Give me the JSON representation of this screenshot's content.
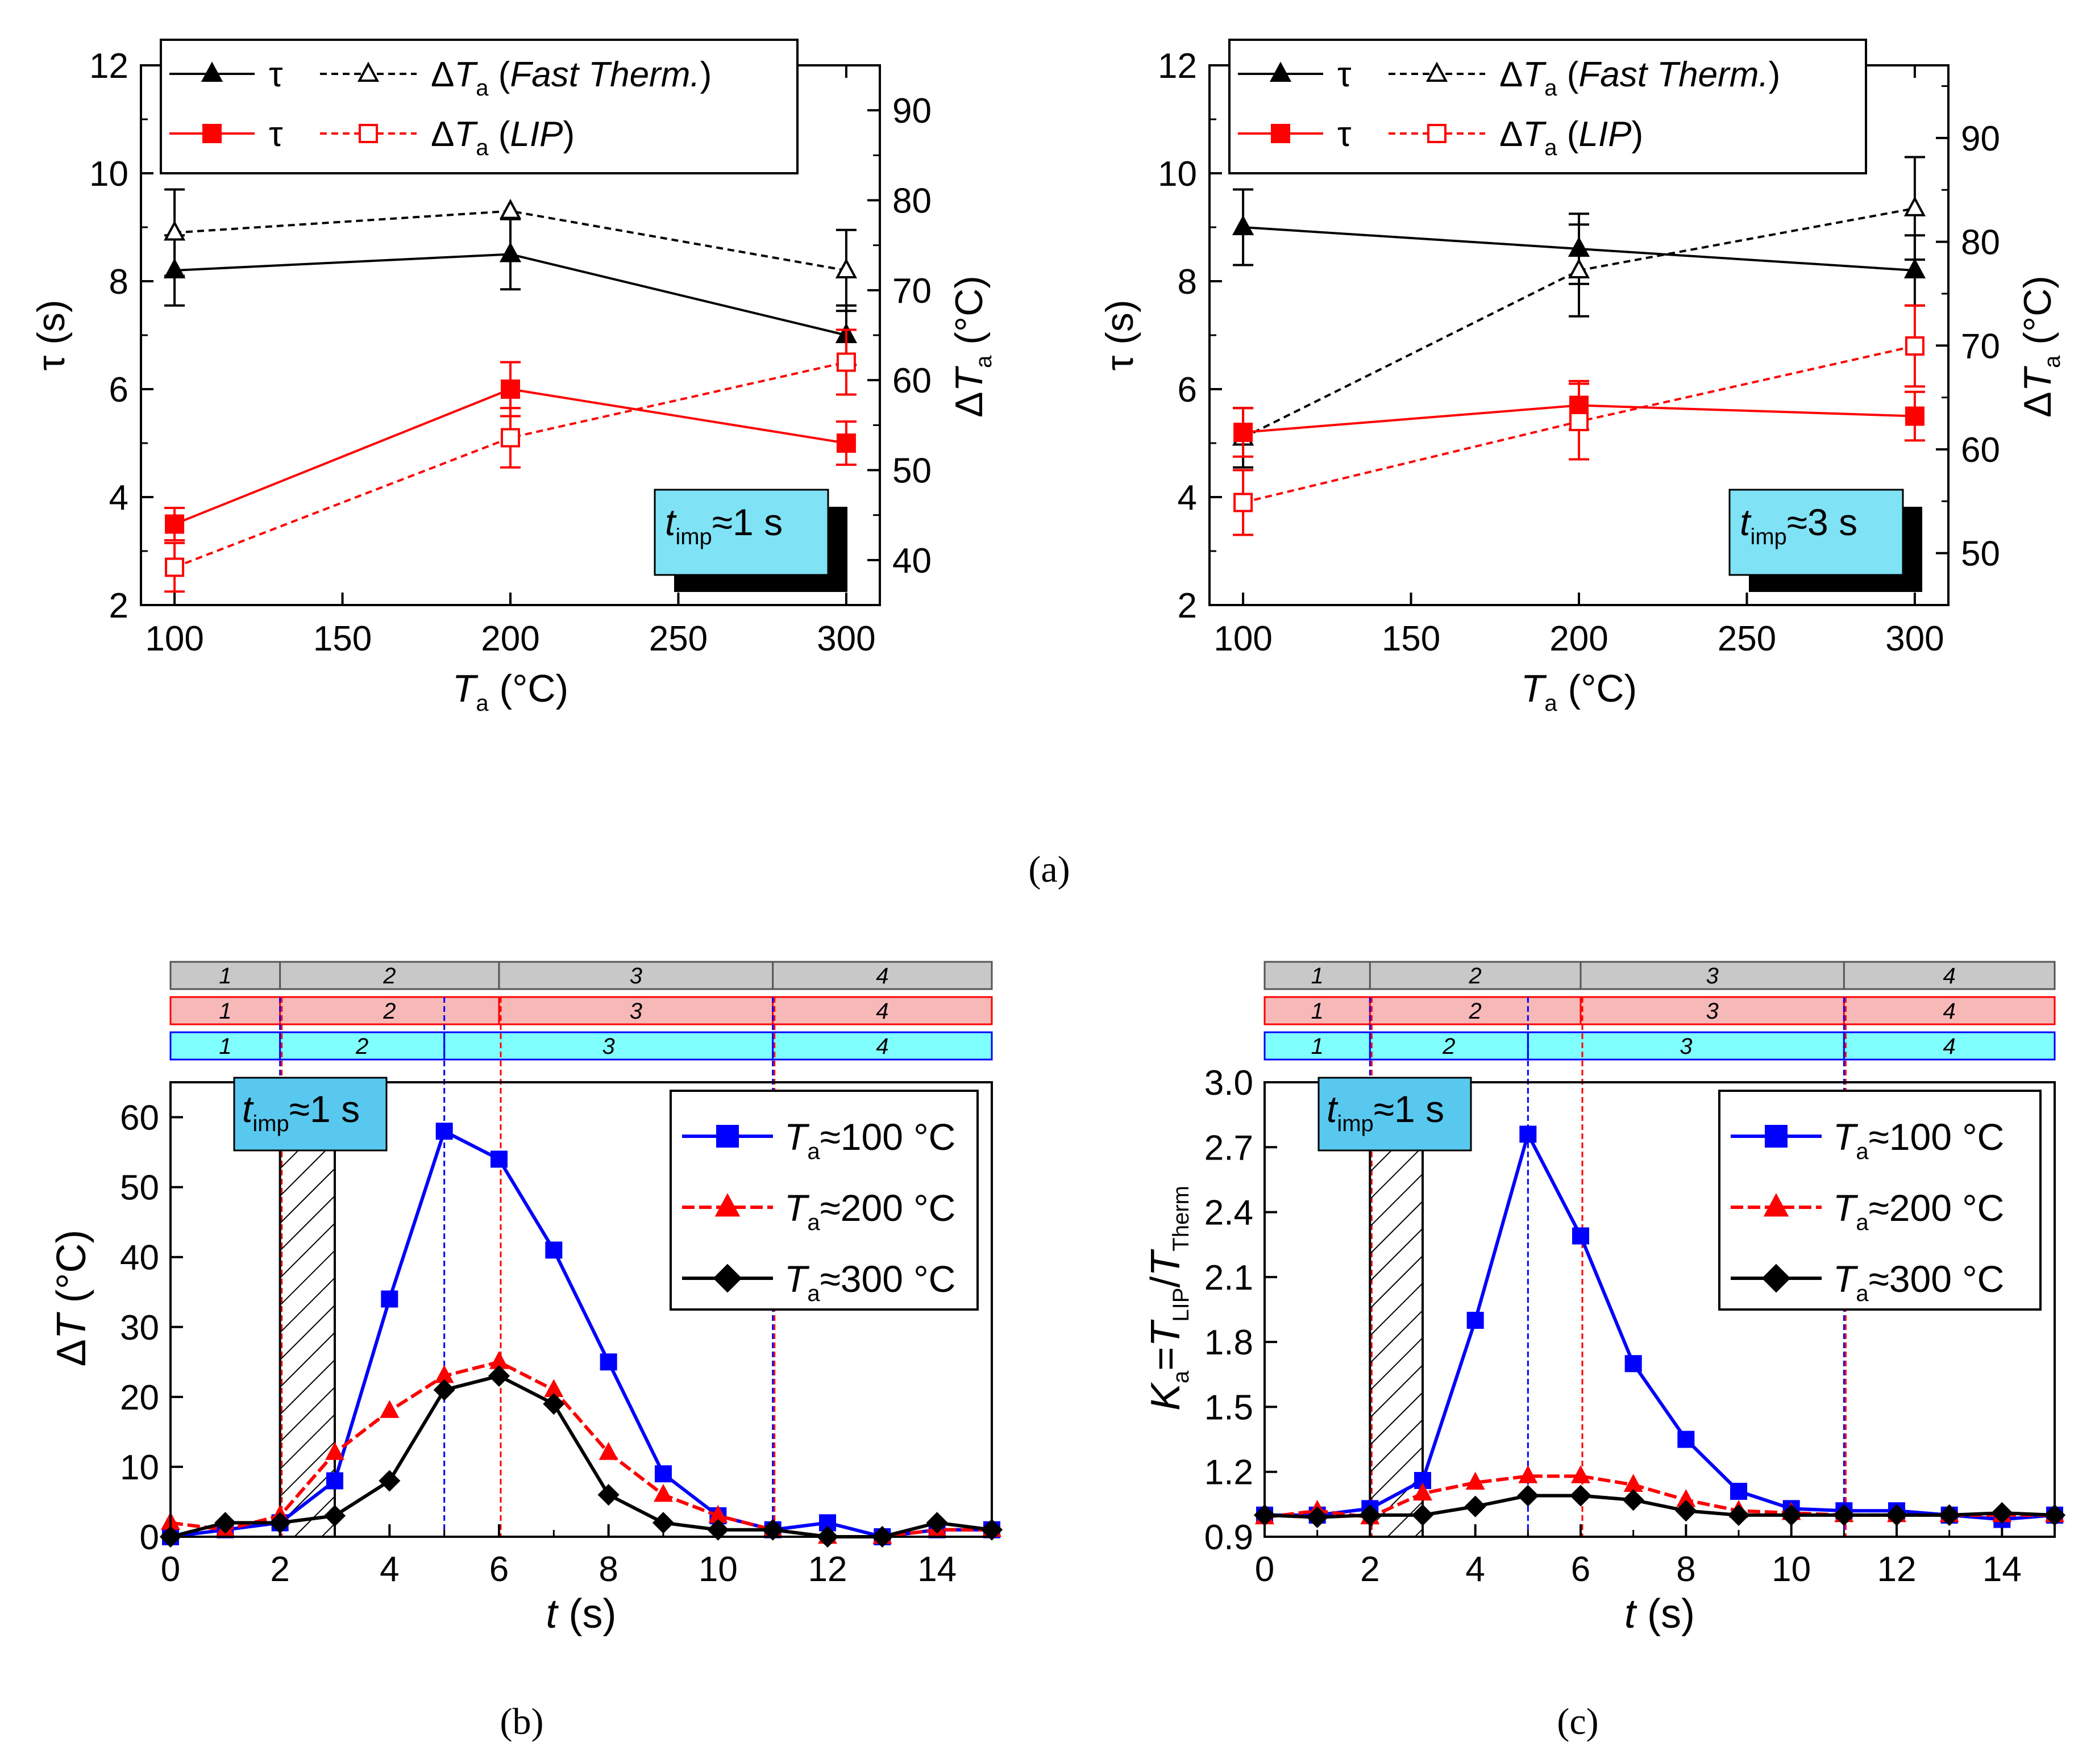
{
  "figure": {
    "panel_a_label": "(a)",
    "panel_b_label": "(b)",
    "panel_c_label": "(c)"
  },
  "chart_data": [
    {
      "id": "a1",
      "type": "line",
      "xlabel": "T",
      "xlabel_sub": "a",
      "xlabel_unit": "(°C)",
      "ylabel": "τ (s)",
      "y2label": "ΔT",
      "y2label_sub": "a",
      "y2label_unit": "(°C)",
      "xlim": [
        90,
        310
      ],
      "ylim": [
        2,
        12
      ],
      "y2lim": [
        35,
        95
      ],
      "xticks": [
        100,
        150,
        200,
        250,
        300
      ],
      "yticks": [
        2,
        4,
        6,
        8,
        10,
        12
      ],
      "y2ticks": [
        40,
        50,
        60,
        70,
        80,
        90
      ],
      "x": [
        100,
        200,
        300
      ],
      "series": [
        {
          "name": "τ (Fast Therm.)",
          "axis": "left",
          "color": "#000000",
          "marker": "triangle",
          "filled": true,
          "dashed": false,
          "values": [
            8.2,
            8.5,
            7.0
          ],
          "err": [
            0.65,
            0.65,
            0.55
          ]
        },
        {
          "name": "ΔTa (Fast Therm.)",
          "axis": "left",
          "color": "#000000",
          "marker": "triangle",
          "filled": false,
          "dashed": true,
          "values": [
            8.9,
            9.3,
            8.2
          ],
          "err": [
            0.8,
            0.0,
            0.75
          ]
        },
        {
          "name": "τ (LIP)",
          "axis": "left",
          "color": "#ff0000",
          "marker": "square",
          "filled": true,
          "dashed": false,
          "values": [
            3.5,
            6.0,
            5.0
          ],
          "err": [
            0.3,
            0.5,
            0.4
          ]
        },
        {
          "name": "ΔTa (LIP)",
          "axis": "left",
          "color": "#ff0000",
          "marker": "square",
          "filled": false,
          "dashed": true,
          "values": [
            2.7,
            5.1,
            6.5
          ],
          "err": [
            0.45,
            0.55,
            0.6
          ]
        }
      ],
      "legend": {
        "row1": {
          "tau": "τ",
          "dT": "ΔT",
          "dT_sub": "a",
          "method": "Fast Therm."
        },
        "row2": {
          "tau": "τ",
          "dT": "ΔT",
          "dT_sub": "a",
          "method": "LIP"
        }
      },
      "annotation": {
        "t": "t",
        "sub": "imp",
        "rest": "≈1 s"
      }
    },
    {
      "id": "a2",
      "type": "line",
      "xlabel": "T",
      "xlabel_sub": "a",
      "xlabel_unit": "(°C)",
      "ylabel": "τ (s)",
      "y2label": "ΔT",
      "y2label_sub": "a",
      "y2label_unit": "(°C)",
      "xlim": [
        90,
        310
      ],
      "ylim": [
        2,
        12
      ],
      "y2lim": [
        45,
        97
      ],
      "xticks": [
        100,
        150,
        200,
        250,
        300
      ],
      "yticks": [
        2,
        4,
        6,
        8,
        10,
        12
      ],
      "y2ticks": [
        50,
        60,
        70,
        80,
        90
      ],
      "x": [
        100,
        200,
        300
      ],
      "series": [
        {
          "name": "τ (Fast Therm.)",
          "axis": "left",
          "color": "#000000",
          "marker": "triangle",
          "filled": true,
          "dashed": false,
          "values": [
            9.0,
            8.6,
            8.2
          ],
          "err": [
            0.7,
            0.65,
            0.65
          ]
        },
        {
          "name": "ΔTa (Fast Therm.)",
          "axis": "left",
          "color": "#000000",
          "marker": "triangle",
          "filled": false,
          "dashed": true,
          "values": [
            5.1,
            8.2,
            9.35
          ],
          "err": [
            0.55,
            0.85,
            0.95
          ]
        },
        {
          "name": "τ (LIP)",
          "axis": "left",
          "color": "#ff0000",
          "marker": "square",
          "filled": true,
          "dashed": false,
          "values": [
            5.2,
            5.7,
            5.5
          ],
          "err": [
            0.45,
            0.45,
            0.45
          ]
        },
        {
          "name": "ΔTa (LIP)",
          "axis": "left",
          "color": "#ff0000",
          "marker": "square",
          "filled": false,
          "dashed": true,
          "values": [
            3.9,
            5.4,
            6.8
          ],
          "err": [
            0.6,
            0.7,
            0.75
          ]
        }
      ],
      "legend": {
        "row1": {
          "tau": "τ",
          "dT": "ΔT",
          "dT_sub": "a",
          "method": "Fast Therm."
        },
        "row2": {
          "tau": "τ",
          "dT": "ΔT",
          "dT_sub": "a",
          "method": "LIP"
        }
      },
      "annotation": {
        "t": "t",
        "sub": "imp",
        "rest": "≈3 s"
      }
    },
    {
      "id": "b",
      "type": "line",
      "xlabel": "t",
      "xlabel_unit": "(s)",
      "ylabel": "ΔT",
      "ylabel_unit": "(°C)",
      "xlim": [
        0,
        15
      ],
      "ylim": [
        0,
        65
      ],
      "xticks": [
        0,
        2,
        4,
        6,
        8,
        10,
        12,
        14
      ],
      "yticks": [
        0,
        10,
        20,
        30,
        40,
        50,
        60
      ],
      "x": [
        0,
        1,
        2,
        3,
        4,
        5,
        6,
        7,
        8,
        9,
        10,
        11,
        12,
        13,
        14,
        15
      ],
      "series": [
        {
          "name": "Ta≈100 °C",
          "color": "#0000ff",
          "marker": "square",
          "values": [
            0,
            1,
            2,
            8,
            34,
            58,
            54,
            41,
            25,
            9,
            3,
            1,
            2,
            0,
            1,
            1
          ]
        },
        {
          "name": "Ta≈200 °C",
          "color": "#ff0000",
          "marker": "triangle",
          "values": [
            2,
            1,
            3,
            12,
            18,
            23,
            25,
            21,
            12,
            6,
            3,
            1,
            0,
            0,
            1,
            1
          ]
        },
        {
          "name": "Ta≈300 °C",
          "color": "#000000",
          "marker": "diamond",
          "values": [
            0,
            2,
            2,
            3,
            8,
            21,
            23,
            19,
            6,
            2,
            1,
            1,
            0,
            0,
            2,
            1
          ]
        }
      ],
      "legend": [
        {
          "t": "T",
          "sub": "a",
          "rest": "≈100 °C"
        },
        {
          "t": "T",
          "sub": "a",
          "rest": "≈200 °C"
        },
        {
          "t": "T",
          "sub": "a",
          "rest": "≈300 °C"
        }
      ],
      "impulse": {
        "start": 2,
        "end": 3
      },
      "stages": [
        {
          "color": "#c8c8c8",
          "border": "#555555",
          "bounds": [
            0,
            2,
            6,
            11,
            15
          ],
          "labels": [
            "1",
            "2",
            "3",
            "4"
          ]
        },
        {
          "color": "#f7b8b8",
          "border": "#ff0000",
          "bounds": [
            0,
            2,
            6,
            11,
            15
          ],
          "labels": [
            "1",
            "2",
            "3",
            "4"
          ]
        },
        {
          "color": "#80ffff",
          "border": "#0000ff",
          "bounds": [
            0,
            2,
            5,
            11,
            15
          ],
          "labels": [
            "1",
            "2",
            "3",
            "4"
          ]
        }
      ],
      "annotation": {
        "t": "t",
        "sub": "imp",
        "rest": "≈1 s"
      }
    },
    {
      "id": "c",
      "type": "line",
      "xlabel": "t",
      "xlabel_unit": "(s)",
      "ylabel": "K",
      "ylabel_sub": "a",
      "ylabel_eq": "=T",
      "ylabel_sub2": "LIP",
      "ylabel_slash": "/T",
      "ylabel_sub3": "Therm",
      "xlim": [
        0,
        15
      ],
      "ylim": [
        0.9,
        3.0
      ],
      "xticks": [
        0,
        2,
        4,
        6,
        8,
        10,
        12,
        14
      ],
      "yticks": [
        0.9,
        1.2,
        1.5,
        1.8,
        2.1,
        2.4,
        2.7,
        3.0
      ],
      "ytick_labels": [
        "0.9",
        "1.2",
        "1.5",
        "1.8",
        "2.1",
        "2.4",
        "2.7",
        "3.0"
      ],
      "x": [
        0,
        1,
        2,
        3,
        4,
        5,
        6,
        7,
        8,
        9,
        10,
        11,
        12,
        13,
        14,
        15
      ],
      "series": [
        {
          "name": "Ta≈100 °C",
          "color": "#0000ff",
          "marker": "square",
          "values": [
            1.0,
            1.0,
            1.03,
            1.16,
            1.9,
            2.76,
            2.29,
            1.7,
            1.35,
            1.11,
            1.03,
            1.02,
            1.02,
            1.0,
            0.98,
            1.0
          ]
        },
        {
          "name": "Ta≈200 °C",
          "color": "#ff0000",
          "marker": "triangle",
          "values": [
            0.99,
            1.02,
            0.99,
            1.1,
            1.15,
            1.18,
            1.18,
            1.14,
            1.07,
            1.02,
            1.01,
            1.0,
            1.0,
            1.0,
            1.0,
            1.0
          ]
        },
        {
          "name": "Ta≈300 °C",
          "color": "#000000",
          "marker": "diamond",
          "values": [
            1.0,
            0.99,
            1.0,
            1.0,
            1.04,
            1.09,
            1.09,
            1.07,
            1.02,
            1.0,
            1.0,
            1.0,
            1.0,
            1.0,
            1.01,
            1.0
          ]
        }
      ],
      "legend": [
        {
          "t": "T",
          "sub": "a",
          "rest": "≈100 °C"
        },
        {
          "t": "T",
          "sub": "a",
          "rest": "≈200 °C"
        },
        {
          "t": "T",
          "sub": "a",
          "rest": "≈300 °C"
        }
      ],
      "impulse": {
        "start": 2,
        "end": 3
      },
      "stages": [
        {
          "color": "#c8c8c8",
          "border": "#555555",
          "bounds": [
            0,
            2,
            6,
            11,
            15
          ],
          "labels": [
            "1",
            "2",
            "3",
            "4"
          ]
        },
        {
          "color": "#f7b8b8",
          "border": "#ff0000",
          "bounds": [
            0,
            2,
            6,
            11,
            15
          ],
          "labels": [
            "1",
            "2",
            "3",
            "4"
          ]
        },
        {
          "color": "#80ffff",
          "border": "#0000ff",
          "bounds": [
            0,
            2,
            5,
            11,
            15
          ],
          "labels": [
            "1",
            "2",
            "3",
            "4"
          ]
        }
      ],
      "annotation": {
        "t": "t",
        "sub": "imp",
        "rest": "≈1 s"
      }
    }
  ]
}
